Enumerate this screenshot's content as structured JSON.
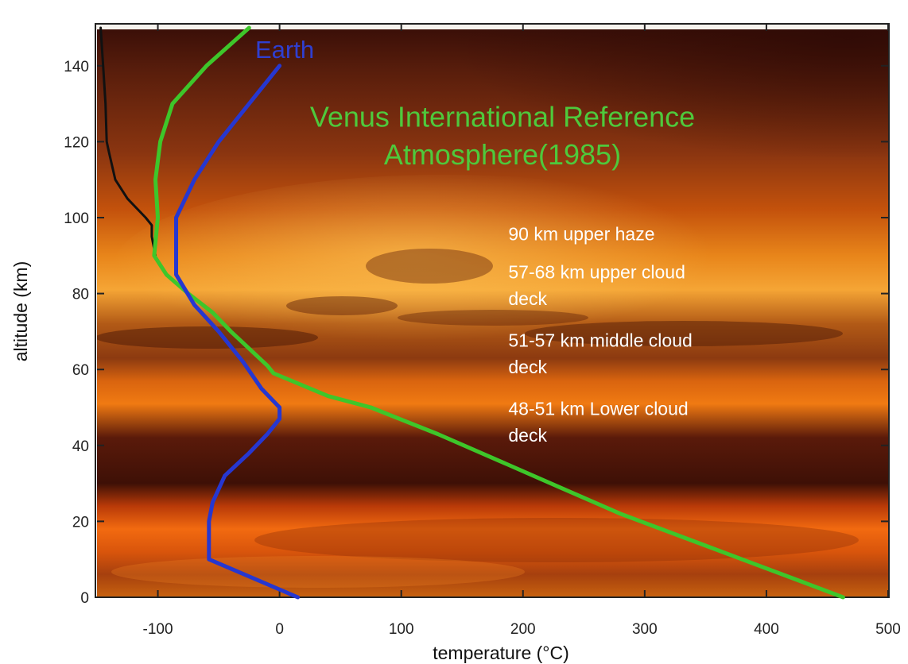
{
  "chart_data": {
    "type": "line",
    "title": "",
    "xlabel": "temperature (°C)",
    "ylabel": "altitude (km)",
    "xlim": [
      -150,
      500
    ],
    "ylim": [
      0,
      150
    ],
    "xticks": [
      -100,
      0,
      100,
      200,
      300,
      400,
      500
    ],
    "yticks": [
      0,
      20,
      40,
      60,
      80,
      100,
      120,
      140
    ],
    "grid": false,
    "background": "Venus cloud-layer photograph (orange/brown)",
    "series": [
      {
        "name": "",
        "color": "#111111",
        "x": [
          -147,
          -145,
          -143,
          -142,
          -140,
          -135,
          -125,
          -110,
          -105,
          -105,
          -102
        ],
        "y": [
          150,
          140,
          130,
          120,
          117,
          110,
          105,
          100,
          98,
          95,
          90
        ]
      },
      {
        "name": "Venus International Reference Atmosphere(1985)",
        "color": "#3ec62a",
        "x": [
          -25,
          -60,
          -88,
          -98,
          -102,
          -100,
          -103,
          -93,
          -75,
          -55,
          -40,
          -30,
          -20,
          -10,
          -5,
          10,
          40,
          75,
          130,
          180,
          230,
          280,
          330,
          380,
          430,
          463
        ],
        "y": [
          150,
          140,
          130,
          120,
          110,
          100,
          90,
          85,
          80,
          75,
          70,
          67,
          64,
          61,
          59,
          57,
          53,
          50,
          43,
          36,
          29,
          22,
          16,
          10,
          4,
          0
        ]
      },
      {
        "name": "Earth",
        "color": "#2637d0",
        "x": [
          0,
          -25,
          -50,
          -70,
          -85,
          -85,
          -85,
          -70,
          -50,
          -30,
          -15,
          0,
          0,
          -10,
          -25,
          -45,
          -55,
          -58,
          -58,
          15
        ],
        "y": [
          140,
          130,
          120,
          110,
          100,
          95,
          85,
          77,
          70,
          62,
          55,
          50,
          47,
          43,
          38,
          32,
          25,
          20,
          10,
          0
        ]
      }
    ],
    "annotations": [
      {
        "id": "earth",
        "text": "Earth",
        "x": -20,
        "y": 142
      },
      {
        "id": "title_1",
        "text": "Venus International Reference",
        "x": 35,
        "y": 124
      },
      {
        "id": "title_2",
        "text": "Atmosphere(1985)",
        "x": 70,
        "y": 114
      },
      {
        "id": "haze",
        "text": "90 km upper haze",
        "x": 188,
        "y": 94
      },
      {
        "id": "upper_1",
        "text": "57-68 km upper cloud",
        "x": 188,
        "y": 84
      },
      {
        "id": "upper_2",
        "text": "deck",
        "x": 188,
        "y": 77
      },
      {
        "id": "middle_1",
        "text": "51-57 km middle cloud",
        "x": 188,
        "y": 66
      },
      {
        "id": "middle_2",
        "text": "deck",
        "x": 188,
        "y": 59
      },
      {
        "id": "lower_1",
        "text": "48-51 km Lower cloud",
        "x": 188,
        "y": 48
      },
      {
        "id": "lower_2",
        "text": "deck",
        "x": 188,
        "y": 41
      }
    ]
  }
}
